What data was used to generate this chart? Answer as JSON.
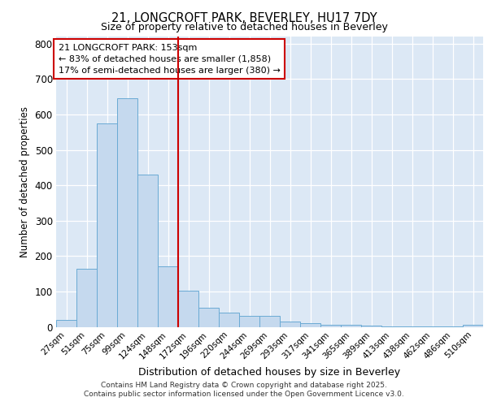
{
  "title1": "21, LONGCROFT PARK, BEVERLEY, HU17 7DY",
  "title2": "Size of property relative to detached houses in Beverley",
  "xlabel": "Distribution of detached houses by size in Beverley",
  "ylabel": "Number of detached properties",
  "bar_labels": [
    "27sqm",
    "51sqm",
    "75sqm",
    "99sqm",
    "124sqm",
    "148sqm",
    "172sqm",
    "196sqm",
    "220sqm",
    "244sqm",
    "269sqm",
    "293sqm",
    "317sqm",
    "341sqm",
    "365sqm",
    "389sqm",
    "413sqm",
    "438sqm",
    "462sqm",
    "486sqm",
    "510sqm"
  ],
  "bar_values": [
    20,
    165,
    575,
    645,
    430,
    170,
    103,
    55,
    40,
    30,
    30,
    15,
    10,
    5,
    5,
    3,
    2,
    1,
    1,
    1,
    5
  ],
  "bar_color": "#c5d9ee",
  "bar_edgecolor": "#6aaad4",
  "vline_x": 5.5,
  "vline_color": "#cc0000",
  "annotation_title": "21 LONGCROFT PARK: 153sqm",
  "annotation_line1": "← 83% of detached houses are smaller (1,858)",
  "annotation_line2": "17% of semi-detached houses are larger (380) →",
  "annotation_box_facecolor": "#ffffff",
  "annotation_box_edgecolor": "#cc0000",
  "ylim": [
    0,
    820
  ],
  "yticks": [
    0,
    100,
    200,
    300,
    400,
    500,
    600,
    700,
    800
  ],
  "plot_bg_color": "#dce8f5",
  "fig_bg_color": "#ffffff",
  "footer1": "Contains HM Land Registry data © Crown copyright and database right 2025.",
  "footer2": "Contains public sector information licensed under the Open Government Licence v3.0."
}
